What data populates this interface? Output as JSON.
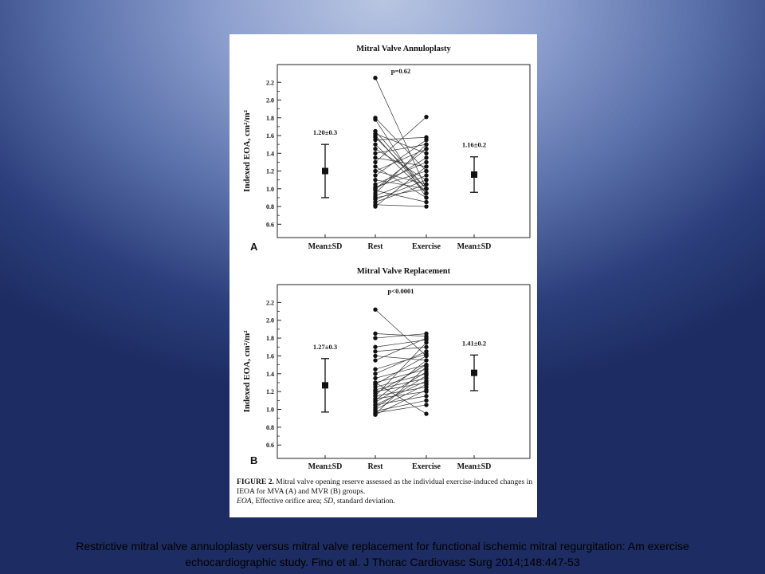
{
  "figure": {
    "caption_label": "FIGURE 2.",
    "caption_text": " Mitral valve opening reserve assessed as the individual exercise-induced changes in IEOA for MVA (A) and MVR (B) groups.",
    "caption_abbrev_1_term": "EOA,",
    "caption_abbrev_1_text": " Effective orifice area; ",
    "caption_abbrev_2_term": "SD,",
    "caption_abbrev_2_text": " standard deviation."
  },
  "citation": "Restrictive mitral valve annuloplasty versus mitral valve replacement for functional ischemic mitral regurgitation: Am exercise echocardiographic study.   Fino et al.   J Thorac Cardiovasc Surg 2014;148:447-53",
  "chart_data": [
    {
      "type": "scatter",
      "panel_label": "A",
      "title": "Mitral Valve Annuloplasty",
      "ylabel": "Indexed EOA, cm²/m²",
      "xlabel": "",
      "categories": [
        "Mean±SD",
        "Rest",
        "Exercise",
        "Mean±SD"
      ],
      "ylim": [
        0.45,
        2.4
      ],
      "yticks": [
        0.6,
        0.8,
        1.0,
        1.2,
        1.4,
        1.6,
        1.8,
        2.0,
        2.2
      ],
      "grid": false,
      "p_value": "p=0.62",
      "summary": [
        {
          "category": "Mean±SD",
          "label": "1.20±0.3",
          "mean": 1.2,
          "sd": 0.3
        },
        {
          "category": "Mean±SD",
          "label": "1.16±0.2",
          "mean": 1.16,
          "sd": 0.2
        }
      ],
      "paired": [
        [
          2.25,
          1.0
        ],
        [
          1.8,
          1.2
        ],
        [
          1.78,
          0.9
        ],
        [
          1.65,
          1.0
        ],
        [
          1.62,
          1.4
        ],
        [
          1.58,
          1.0
        ],
        [
          1.55,
          1.58
        ],
        [
          1.5,
          0.95
        ],
        [
          1.45,
          1.1
        ],
        [
          1.4,
          1.5
        ],
        [
          1.35,
          1.25
        ],
        [
          1.3,
          1.81
        ],
        [
          1.25,
          0.9
        ],
        [
          1.2,
          1.45
        ],
        [
          1.15,
          1.55
        ],
        [
          1.1,
          1.0
        ],
        [
          1.05,
          1.3
        ],
        [
          1.02,
          1.2
        ],
        [
          1.0,
          1.35
        ],
        [
          0.98,
          0.85
        ],
        [
          0.95,
          1.5
        ],
        [
          0.92,
          1.15
        ],
        [
          0.9,
          1.0
        ],
        [
          0.88,
          1.1
        ],
        [
          0.85,
          1.05
        ],
        [
          0.82,
          0.8
        ],
        [
          0.8,
          1.25
        ],
        [
          1.6,
          0.95
        ],
        [
          1.0,
          1.45
        ],
        [
          1.2,
          1.05
        ]
      ]
    },
    {
      "type": "scatter",
      "panel_label": "B",
      "title": "Mitral Valve Replacement",
      "ylabel": "Indexed EOA, cm²/m²",
      "xlabel": "",
      "categories": [
        "Mean±SD",
        "Rest",
        "Exercise",
        "Mean±SD"
      ],
      "ylim": [
        0.45,
        2.4
      ],
      "yticks": [
        0.6,
        0.8,
        1.0,
        1.2,
        1.4,
        1.6,
        1.8,
        2.0,
        2.2
      ],
      "grid": false,
      "p_value": "p<0.0001",
      "summary": [
        {
          "category": "Mean±SD",
          "label": "1.27±0.3",
          "mean": 1.27,
          "sd": 0.3
        },
        {
          "category": "Mean±SD",
          "label": "1.41±0.2",
          "mean": 1.41,
          "sd": 0.2
        }
      ],
      "paired": [
        [
          2.12,
          1.6
        ],
        [
          1.85,
          1.82
        ],
        [
          1.8,
          1.85
        ],
        [
          1.7,
          1.78
        ],
        [
          1.65,
          1.7
        ],
        [
          1.6,
          1.55
        ],
        [
          1.55,
          1.8
        ],
        [
          1.4,
          1.65
        ],
        [
          1.35,
          1.5
        ],
        [
          1.3,
          1.45
        ],
        [
          1.28,
          1.6
        ],
        [
          1.25,
          1.4
        ],
        [
          1.22,
          1.35
        ],
        [
          1.2,
          1.3
        ],
        [
          1.18,
          1.5
        ],
        [
          1.15,
          1.25
        ],
        [
          1.12,
          1.2
        ],
        [
          1.1,
          1.55
        ],
        [
          1.08,
          1.42
        ],
        [
          1.05,
          1.15
        ],
        [
          1.02,
          1.38
        ],
        [
          1.0,
          1.28
        ],
        [
          0.98,
          1.1
        ],
        [
          0.96,
          1.05
        ],
        [
          0.95,
          1.48
        ],
        [
          1.3,
          0.95
        ],
        [
          1.15,
          1.75
        ],
        [
          1.45,
          1.62
        ],
        [
          0.94,
          1.22
        ],
        [
          1.05,
          1.32
        ]
      ]
    }
  ]
}
